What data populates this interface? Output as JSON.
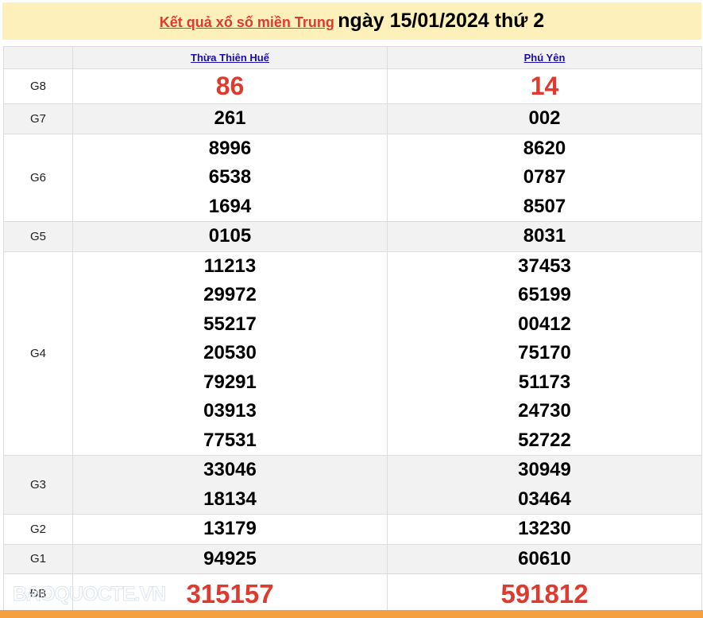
{
  "header": {
    "link": "Kết quả xổ số miền Trung",
    "date": "ngày 15/01/2024 thứ 2"
  },
  "columns": [
    "Thừa Thiên Huế",
    "Phú Yên"
  ],
  "rows": [
    {
      "label": "G8",
      "a": [
        "86"
      ],
      "b": [
        "14"
      ]
    },
    {
      "label": "G7",
      "a": [
        "261"
      ],
      "b": [
        "002"
      ]
    },
    {
      "label": "G6",
      "a": [
        "8996",
        "6538",
        "1694"
      ],
      "b": [
        "8620",
        "0787",
        "8507"
      ]
    },
    {
      "label": "G5",
      "a": [
        "0105"
      ],
      "b": [
        "8031"
      ]
    },
    {
      "label": "G4",
      "a": [
        "11213",
        "29972",
        "55217",
        "20530",
        "79291",
        "03913",
        "77531"
      ],
      "b": [
        "37453",
        "65199",
        "00412",
        "75170",
        "51173",
        "24730",
        "52722"
      ]
    },
    {
      "label": "G3",
      "a": [
        "33046",
        "18134"
      ],
      "b": [
        "30949",
        "03464"
      ]
    },
    {
      "label": "G2",
      "a": [
        "13179"
      ],
      "b": [
        "13230"
      ]
    },
    {
      "label": "G1",
      "a": [
        "94925"
      ],
      "b": [
        "60610"
      ]
    },
    {
      "label": "ĐB",
      "a": [
        "315157"
      ],
      "b": [
        "591812"
      ]
    }
  ],
  "watermark": "BAOQUOCTE.VN"
}
